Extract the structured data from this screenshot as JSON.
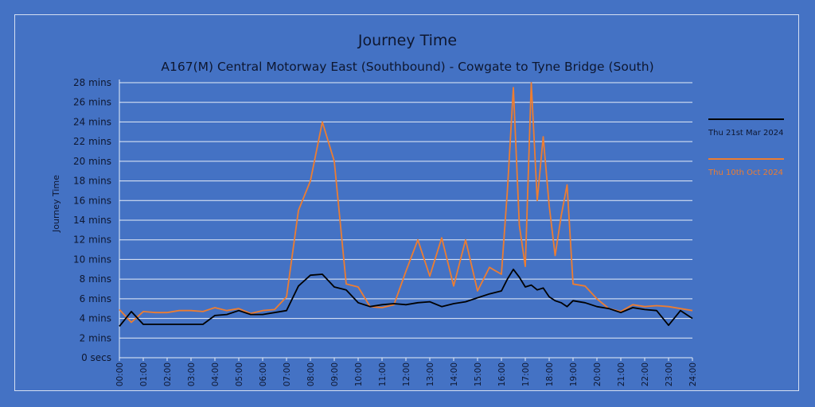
{
  "chart_data": {
    "type": "line",
    "title": "Journey Time",
    "subtitle": "A167(M) Central Motorway East (Southbound) - Cowgate to Tyne Bridge (South)",
    "ylabel": "Journey Time",
    "xlabel": "",
    "xlim": [
      0,
      24
    ],
    "ylim": [
      0,
      28
    ],
    "grid": true,
    "legend_position": "right",
    "x_tick_labels": [
      "00:00",
      "01:00",
      "02:00",
      "03:00",
      "04:00",
      "05:00",
      "06:00",
      "07:00",
      "08:00",
      "09:00",
      "10:00",
      "11:00",
      "12:00",
      "13:00",
      "14:00",
      "15:00",
      "16:00",
      "17:00",
      "18:00",
      "19:00",
      "20:00",
      "21:00",
      "22:00",
      "23:00",
      "24:00"
    ],
    "y_tick_labels": [
      "0 secs",
      "2 mins",
      "4 mins",
      "6 mins",
      "8 mins",
      "10 mins",
      "12 mins",
      "14 mins",
      "16 mins",
      "18 mins",
      "20 mins",
      "22 mins",
      "24 mins",
      "26 mins",
      "28 mins"
    ],
    "x": [
      "00:00",
      "00:30",
      "01:00",
      "01:30",
      "02:00",
      "02:30",
      "03:00",
      "03:30",
      "04:00",
      "04:30",
      "05:00",
      "05:30",
      "06:00",
      "06:30",
      "07:00",
      "07:30",
      "08:00",
      "08:30",
      "09:00",
      "09:30",
      "10:00",
      "10:30",
      "11:00",
      "11:30",
      "12:00",
      "12:30",
      "13:00",
      "13:30",
      "14:00",
      "14:30",
      "15:00",
      "15:30",
      "16:00",
      "16:15",
      "16:30",
      "16:45",
      "17:00",
      "17:15",
      "17:30",
      "17:45",
      "18:00",
      "18:15",
      "18:30",
      "18:45",
      "19:00",
      "19:30",
      "20:00",
      "20:30",
      "21:00",
      "21:30",
      "22:00",
      "22:30",
      "23:00",
      "23:30",
      "24:00"
    ],
    "series": [
      {
        "name": "Thu 21st Mar 2024",
        "color": "#000000",
        "values": [
          3.2,
          4.7,
          3.4,
          3.4,
          3.4,
          3.4,
          3.4,
          3.4,
          4.3,
          4.4,
          4.8,
          4.4,
          4.4,
          4.6,
          4.8,
          7.3,
          8.4,
          8.5,
          7.2,
          6.9,
          5.6,
          5.2,
          5.4,
          5.5,
          5.4,
          5.6,
          5.7,
          5.2,
          5.5,
          5.7,
          6.1,
          6.5,
          6.8,
          8.0,
          9.0,
          8.2,
          7.2,
          7.4,
          6.9,
          7.1,
          6.2,
          5.8,
          5.6,
          5.2,
          5.8,
          5.6,
          5.2,
          5.0,
          4.6,
          5.1,
          4.9,
          4.8,
          3.3,
          4.8,
          4.0
        ]
      },
      {
        "name": "Thu 10th Oct 2024",
        "color": "#ed7d31",
        "values": [
          4.9,
          3.6,
          4.7,
          4.6,
          4.6,
          4.8,
          4.8,
          4.7,
          5.1,
          4.8,
          5.0,
          4.5,
          4.8,
          4.9,
          6.2,
          15.0,
          18.0,
          24.0,
          20.0,
          7.5,
          7.2,
          5.2,
          5.1,
          5.4,
          8.8,
          12.0,
          8.3,
          12.2,
          7.3,
          12.0,
          6.8,
          9.2,
          8.5,
          17.0,
          27.5,
          13.5,
          9.3,
          28.0,
          16.0,
          22.5,
          15.5,
          10.4,
          14.4,
          17.6,
          7.5,
          7.3,
          6.0,
          5.0,
          4.7,
          5.4,
          5.2,
          5.3,
          5.2,
          5.0,
          4.8
        ]
      }
    ]
  }
}
